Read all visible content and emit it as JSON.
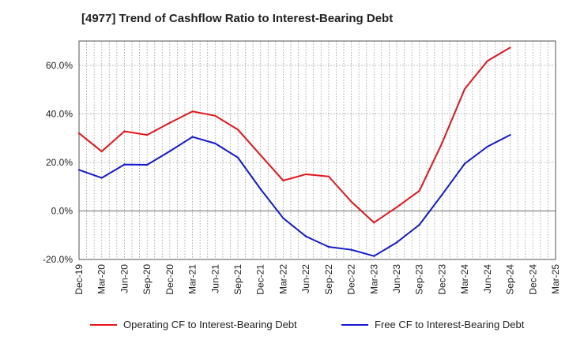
{
  "chart_data": {
    "type": "line",
    "title": "[4977]  Trend of Cashflow Ratio to Interest-Bearing Debt",
    "xlabel": "",
    "ylabel": "",
    "ylim": [
      -20,
      70
    ],
    "y_ticks": [
      "60.0%",
      "40.0%",
      "20.0%",
      "0.0%",
      "-20.0%"
    ],
    "y_tick_values": [
      60,
      40,
      20,
      0,
      -20
    ],
    "categories": [
      "Dec-19",
      "Mar-20",
      "Jun-20",
      "Sep-20",
      "Dec-20",
      "Mar-21",
      "Jun-21",
      "Sep-21",
      "Dec-21",
      "Mar-22",
      "Jun-22",
      "Sep-22",
      "Dec-22",
      "Mar-23",
      "Jun-23",
      "Sep-23",
      "Dec-23",
      "Mar-24",
      "Jun-24",
      "Sep-24",
      "Dec-24",
      "Mar-25"
    ],
    "grid": true,
    "legend_position": "bottom",
    "series": [
      {
        "name": "Operating CF to Interest-Bearing Debt",
        "color": "#e8141c",
        "values": [
          32.0,
          24.5,
          32.8,
          31.3,
          36.3,
          41.0,
          39.2,
          33.5,
          23.0,
          12.5,
          15.1,
          14.2,
          3.8,
          -4.8,
          1.5,
          8.3,
          28.0,
          50.3,
          61.8,
          67.3,
          null,
          null
        ]
      },
      {
        "name": "Free CF to Interest-Bearing Debt",
        "color": "#1419d2",
        "values": [
          16.9,
          13.6,
          19.1,
          19.0,
          24.6,
          30.5,
          27.8,
          22.0,
          9.0,
          -3.0,
          -10.5,
          -14.8,
          -16.0,
          -18.6,
          -13.0,
          -5.7,
          6.7,
          19.5,
          26.5,
          31.3,
          null,
          null
        ]
      }
    ]
  }
}
